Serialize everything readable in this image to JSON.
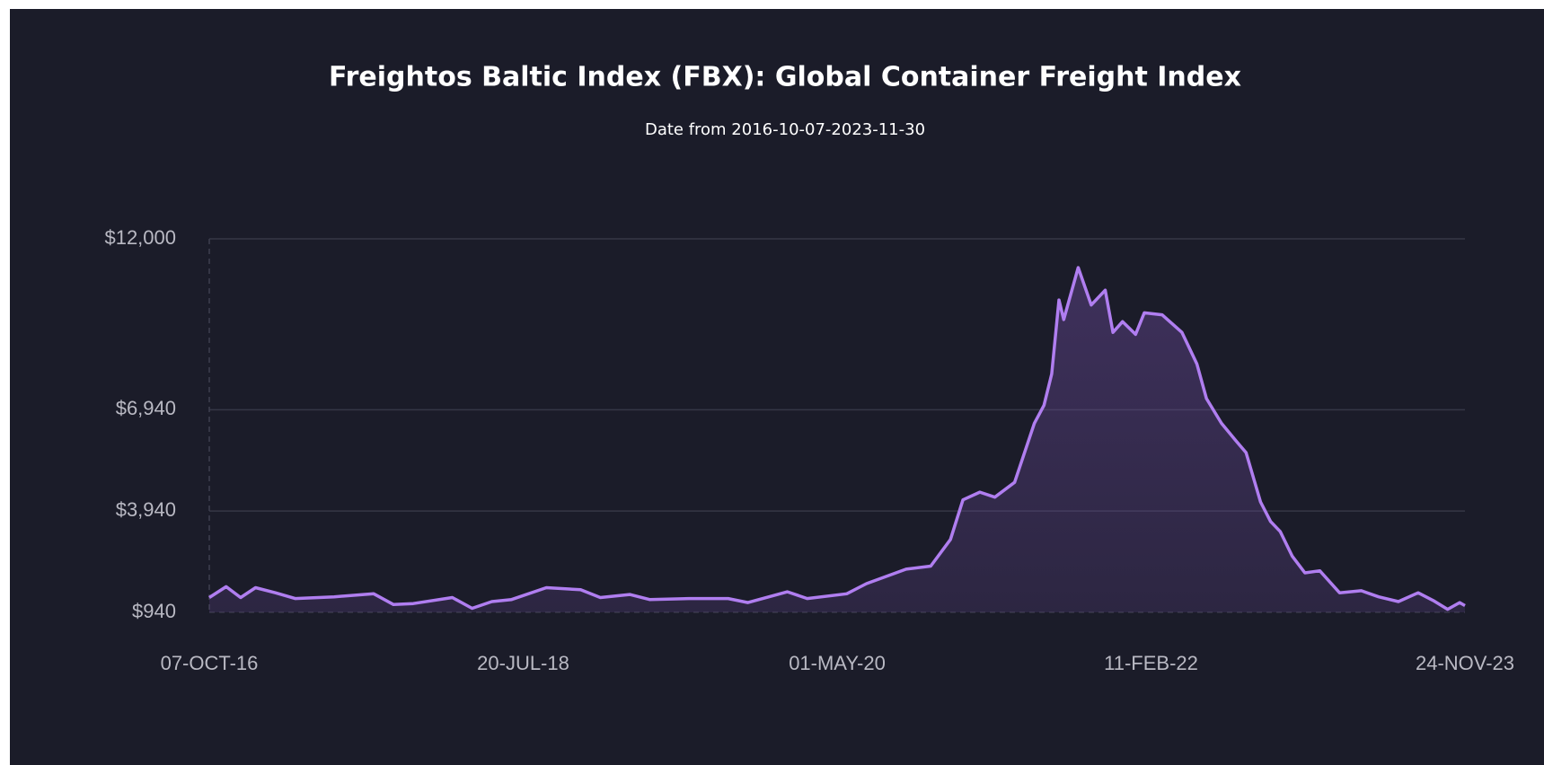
{
  "chart_data": {
    "type": "area",
    "title": "Freightos Baltic Index (FBX): Global Container Freight Index",
    "subtitle": "Date from 2016-10-07-2023-11-30",
    "color": "#b07ef0",
    "x": [
      "2016-10-07",
      "2016-11-11",
      "2016-12-11",
      "2017-01-11",
      "2017-02-21",
      "2017-04-03",
      "2017-06-23",
      "2017-09-13",
      "2017-10-24",
      "2017-12-04",
      "2018-02-23",
      "2018-04-05",
      "2018-05-16",
      "2018-06-26",
      "2018-09-06",
      "2018-11-16",
      "2018-12-27",
      "2019-02-26",
      "2019-04-08",
      "2019-06-29",
      "2019-09-18",
      "2019-10-29",
      "2020-01-19",
      "2020-02-29",
      "2020-05-21",
      "2020-07-01",
      "2020-09-21",
      "2020-11-11",
      "2020-12-22",
      "2021-01-17",
      "2021-02-21",
      "2021-03-24",
      "2021-05-04",
      "2021-06-14",
      "2021-07-04",
      "2021-07-20",
      "2021-08-04",
      "2021-08-14",
      "2021-09-13",
      "2021-10-10",
      "2021-11-08",
      "2021-11-24",
      "2021-12-14",
      "2022-01-10",
      "2022-01-28",
      "2022-03-06",
      "2022-04-16",
      "2022-05-17",
      "2022-06-06",
      "2022-07-07",
      "2022-08-06",
      "2022-08-27",
      "2022-09-26",
      "2022-10-17",
      "2022-11-06",
      "2022-12-01",
      "2022-12-27",
      "2023-01-27",
      "2023-03-09",
      "2023-04-23",
      "2023-05-29",
      "2023-07-09",
      "2023-08-19",
      "2023-09-19",
      "2023-10-19",
      "2023-11-13",
      "2023-11-24"
    ],
    "values": [
      1380,
      1700,
      1380,
      1670,
      1520,
      1350,
      1400,
      1490,
      1170,
      1200,
      1380,
      1060,
      1260,
      1320,
      1670,
      1610,
      1380,
      1470,
      1320,
      1350,
      1350,
      1230,
      1550,
      1350,
      1490,
      1790,
      2220,
      2310,
      3100,
      4270,
      4500,
      4350,
      4790,
      6540,
      7070,
      8000,
      10190,
      9610,
      11150,
      10040,
      10480,
      9230,
      9550,
      9170,
      9810,
      9750,
      9230,
      8300,
      7270,
      6540,
      6020,
      5670,
      4210,
      3630,
      3330,
      2600,
      2110,
      2170,
      1520,
      1580,
      1400,
      1260,
      1520,
      1290,
      1030,
      1230,
      1140
    ],
    "xlim": [
      "2016-10-07",
      "2023-11-24"
    ],
    "xticks": [
      {
        "value": "2016-10-07",
        "label": "07-OCT-16"
      },
      {
        "value": "2018-07-20",
        "label": "20-JUL-18"
      },
      {
        "value": "2020-05-01",
        "label": "01-MAY-20"
      },
      {
        "value": "2022-02-11",
        "label": "11-FEB-22"
      },
      {
        "value": "2023-11-24",
        "label": "24-NOV-23"
      }
    ],
    "ylim": [
      940,
      12000
    ],
    "yticks": [
      {
        "value": 940,
        "label": "$940"
      },
      {
        "value": 3940,
        "label": "$3,940"
      },
      {
        "value": 6940,
        "label": "$6,940"
      },
      {
        "value": 12000,
        "label": "$12,000"
      }
    ],
    "grid": true
  }
}
